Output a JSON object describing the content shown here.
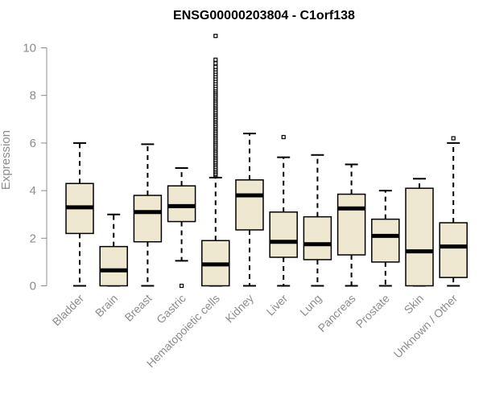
{
  "chart_data": {
    "type": "boxplot",
    "title": "ENSG00000203804 - C1orf138",
    "xlabel": "",
    "ylabel": "Expression",
    "ylim": [
      0,
      10.5
    ],
    "yticks": [
      0,
      2,
      4,
      6,
      8,
      10
    ],
    "grid": false,
    "legend": "none",
    "colors": {
      "box_fill": "#efe8d0",
      "stroke": "#000000",
      "axis": "#8c8c8c"
    },
    "categories": [
      "Bladder",
      "Brain",
      "Breast",
      "Gastric",
      "Hematopoietic cells",
      "Kidney",
      "Liver",
      "Lung",
      "Pancreas",
      "Prostate",
      "Skin",
      "Unknown / Other"
    ],
    "boxes": [
      {
        "category": "Bladder",
        "whisker_low": 0,
        "q1": 2.2,
        "median": 3.3,
        "q3": 4.3,
        "whisker_high": 6.0,
        "outliers": []
      },
      {
        "category": "Brain",
        "whisker_low": 0,
        "q1": 0,
        "median": 0.65,
        "q3": 1.65,
        "whisker_high": 3.0,
        "outliers": []
      },
      {
        "category": "Breast",
        "whisker_low": 0,
        "q1": 1.85,
        "median": 3.1,
        "q3": 3.8,
        "whisker_high": 5.95,
        "outliers": []
      },
      {
        "category": "Gastric",
        "whisker_low": 1.05,
        "q1": 2.7,
        "median": 3.35,
        "q3": 4.2,
        "whisker_high": 4.95,
        "outliers": [
          0.0
        ]
      },
      {
        "category": "Hematopoietic cells",
        "whisker_low": 0,
        "q1": 0,
        "median": 0.9,
        "q3": 1.9,
        "whisker_high": 4.55,
        "outliers": [
          4.65,
          4.7,
          4.78,
          4.85,
          4.92,
          5.0,
          5.08,
          5.15,
          5.22,
          5.3,
          5.38,
          5.45,
          5.52,
          5.6,
          5.68,
          5.75,
          5.82,
          5.9,
          5.98,
          6.05,
          6.12,
          6.2,
          6.28,
          6.35,
          6.42,
          6.5,
          6.58,
          6.65,
          6.72,
          6.8,
          6.88,
          6.95,
          7.02,
          7.1,
          7.18,
          7.25,
          7.32,
          7.4,
          7.48,
          7.55,
          7.62,
          7.7,
          7.78,
          7.85,
          7.92,
          8.0,
          8.08,
          8.15,
          8.22,
          8.3,
          8.4,
          8.5,
          8.6,
          8.7,
          8.8,
          8.9,
          9.0,
          9.1,
          9.2,
          9.35,
          9.5,
          10.5
        ]
      },
      {
        "category": "Kidney",
        "whisker_low": 0,
        "q1": 2.35,
        "median": 3.8,
        "q3": 4.45,
        "whisker_high": 6.4,
        "outliers": []
      },
      {
        "category": "Liver",
        "whisker_low": 0,
        "q1": 1.2,
        "median": 1.85,
        "q3": 3.1,
        "whisker_high": 5.4,
        "outliers": [
          6.25
        ]
      },
      {
        "category": "Lung",
        "whisker_low": 0,
        "q1": 1.1,
        "median": 1.75,
        "q3": 2.9,
        "whisker_high": 5.5,
        "outliers": []
      },
      {
        "category": "Pancreas",
        "whisker_low": 0,
        "q1": 1.3,
        "median": 3.25,
        "q3": 3.85,
        "whisker_high": 5.1,
        "outliers": []
      },
      {
        "category": "Prostate",
        "whisker_low": 0,
        "q1": 1.0,
        "median": 2.1,
        "q3": 2.8,
        "whisker_high": 4.0,
        "outliers": []
      },
      {
        "category": "Skin",
        "whisker_low": 0,
        "q1": 0,
        "median": 1.45,
        "q3": 4.1,
        "whisker_high": 4.5,
        "outliers": []
      },
      {
        "category": "Unknown / Other",
        "whisker_low": 0,
        "q1": 0.35,
        "median": 1.65,
        "q3": 2.65,
        "whisker_high": 6.0,
        "outliers": [
          6.2
        ]
      }
    ]
  }
}
